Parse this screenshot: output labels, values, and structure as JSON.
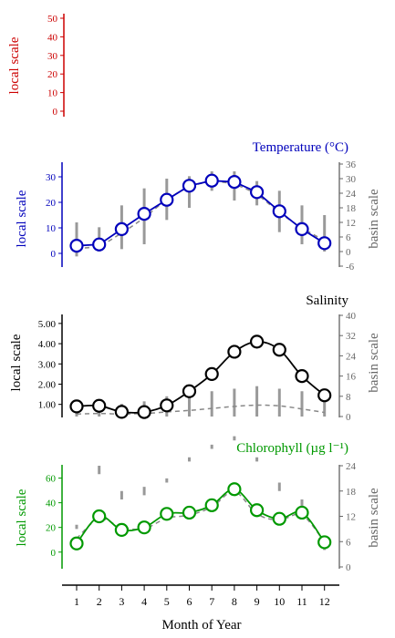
{
  "x_axis": {
    "label": "Month of Year",
    "ticks": [
      "1",
      "2",
      "3",
      "4",
      "5",
      "6",
      "7",
      "8",
      "9",
      "10",
      "11",
      "12"
    ]
  },
  "chart_data": [
    {
      "type": "line",
      "panel": "top",
      "title": "",
      "ylabel_left": "local scale",
      "left_ticks": [
        "50",
        "40",
        "30",
        "20",
        "10",
        "0"
      ],
      "ylim_left": [
        0,
        50
      ],
      "color": "#cc0000",
      "series": []
    },
    {
      "type": "line",
      "panel": "temperature",
      "title": "Temperature (°C)",
      "ylabel_left": "local scale",
      "ylabel_right": "basin scale",
      "left_ticks": [
        "30",
        "20",
        "10",
        "0"
      ],
      "right_ticks": [
        "36",
        "30",
        "24",
        "18",
        "12",
        "6",
        "0",
        "-6"
      ],
      "ylim_left": [
        -5,
        35
      ],
      "ylim_right": [
        -6,
        36
      ],
      "color": "#0000bb",
      "x": [
        1,
        2,
        3,
        4,
        5,
        6,
        7,
        8,
        9,
        10,
        11,
        12
      ],
      "local_values": [
        3,
        3.5,
        9.5,
        15.5,
        21,
        26.5,
        28.5,
        28,
        24,
        16.5,
        9.5,
        4
      ],
      "basin_mean": [
        2,
        3,
        8,
        14,
        21,
        26,
        28,
        27,
        23,
        16,
        10,
        5
      ],
      "basin_range": [
        [
          -2,
          12
        ],
        [
          0,
          10
        ],
        [
          1,
          19
        ],
        [
          3,
          26
        ],
        [
          13,
          30
        ],
        [
          18,
          31
        ],
        [
          25,
          33
        ],
        [
          21,
          33
        ],
        [
          19,
          29
        ],
        [
          8,
          25
        ],
        [
          3,
          19
        ],
        [
          0,
          15
        ]
      ]
    },
    {
      "type": "line",
      "panel": "salinity",
      "title": "Salinity",
      "ylabel_left": "local scale",
      "ylabel_right": "basin scale",
      "left_ticks": [
        "5.00",
        "4.00",
        "3.00",
        "2.00",
        "1.00"
      ],
      "right_ticks": [
        "40",
        "32",
        "24",
        "16",
        "8",
        "0"
      ],
      "ylim_left": [
        0.4,
        5.4
      ],
      "ylim_right": [
        0,
        40
      ],
      "color": "#000000",
      "x": [
        1,
        2,
        3,
        4,
        5,
        6,
        7,
        8,
        9,
        10,
        11,
        12
      ],
      "local_values": [
        0.9,
        0.93,
        0.63,
        0.62,
        0.95,
        1.65,
        2.5,
        3.6,
        4.1,
        3.7,
        2.4,
        1.45
      ],
      "basin_mean": [
        1,
        1.2,
        1,
        1.2,
        1.8,
        2.4,
        3.2,
        4,
        4.5,
        4.2,
        3,
        1.6
      ],
      "basin_range": [
        [
          0,
          5
        ],
        [
          0,
          6
        ],
        [
          0,
          5
        ],
        [
          0,
          6
        ],
        [
          0,
          8
        ],
        [
          0,
          10
        ],
        [
          0,
          10
        ],
        [
          0,
          11
        ],
        [
          0,
          12
        ],
        [
          0,
          11
        ],
        [
          0,
          10
        ],
        [
          0,
          9
        ]
      ]
    },
    {
      "type": "line",
      "panel": "chlorophyll",
      "title": "Chlorophyll (µg l⁻¹)",
      "ylabel_left": "local scale",
      "ylabel_right": "basin scale",
      "left_ticks": [
        "60",
        "40",
        "20",
        "0"
      ],
      "right_ticks": [
        "24",
        "18",
        "12",
        "6",
        "0"
      ],
      "ylim_left": [
        -12,
        70
      ],
      "ylim_right": [
        0,
        24
      ],
      "color": "#009900",
      "x": [
        1,
        2,
        3,
        4,
        5,
        6,
        7,
        8,
        9,
        10,
        11,
        12
      ],
      "local_values": [
        7,
        29,
        18,
        20,
        31,
        32,
        38,
        51,
        34,
        27,
        32,
        8
      ],
      "basin_mean": [
        11,
        27,
        20,
        19,
        27.5,
        30,
        36.5,
        49,
        31,
        26,
        30,
        8
      ],
      "basin_range": [
        [
          9,
          10
        ],
        [
          22,
          24
        ],
        [
          16,
          18
        ],
        [
          17,
          19
        ],
        [
          20,
          21
        ],
        [
          25,
          26
        ],
        [
          28,
          29
        ],
        [
          30,
          31
        ],
        [
          25,
          26
        ],
        [
          18,
          20
        ],
        [
          14,
          16
        ],
        [
          4,
          6
        ]
      ],
      "basin_dashed_upper": [
        24,
        31,
        17,
        17,
        23,
        30,
        34,
        36,
        26,
        20,
        21,
        18
      ]
    }
  ]
}
